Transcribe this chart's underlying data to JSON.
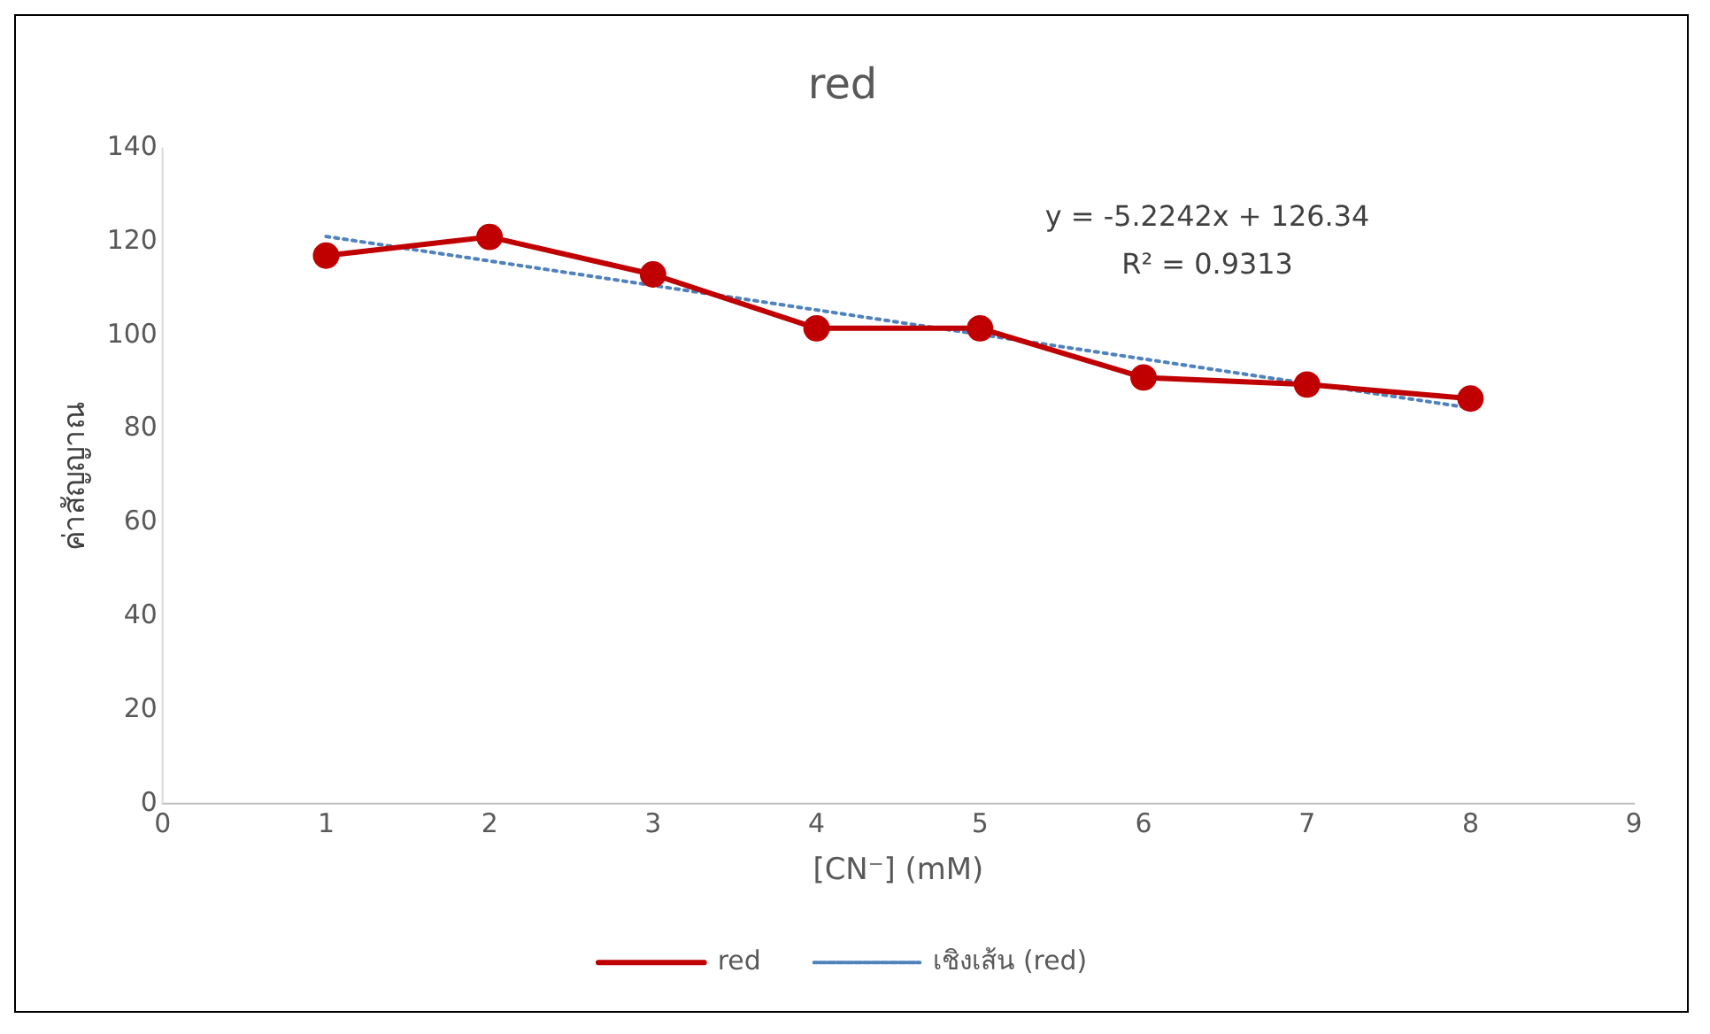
{
  "chart_data": {
    "type": "line",
    "title": "red",
    "xlabel": "[CN⁻] (mM)",
    "ylabel": "ค่าสัญญาณ",
    "x": [
      1,
      2,
      3,
      4,
      5,
      6,
      7,
      8
    ],
    "series": [
      {
        "name": "red",
        "color": "#c00000",
        "values": [
          117,
          121,
          113,
          101.5,
          101.5,
          91,
          89.5,
          86.5
        ],
        "marker": "circle",
        "line_style": "solid"
      },
      {
        "name": "เชิงเส้น (red)",
        "type": "line",
        "color": "#4f81bd",
        "x": [
          1,
          8
        ],
        "values": [
          121.1,
          84.5
        ],
        "marker": "none",
        "line_style": "dotted"
      }
    ],
    "xlim": [
      0,
      9
    ],
    "xticks": [
      0,
      1,
      2,
      3,
      4,
      5,
      6,
      7,
      8,
      9
    ],
    "ylim": [
      0,
      140
    ],
    "yticks": [
      0,
      20,
      40,
      60,
      80,
      100,
      120,
      140
    ],
    "grid": false,
    "legend": "bottom",
    "annotations": [
      "y = -5.2242x + 126.34",
      "R² = 0.9313"
    ]
  }
}
